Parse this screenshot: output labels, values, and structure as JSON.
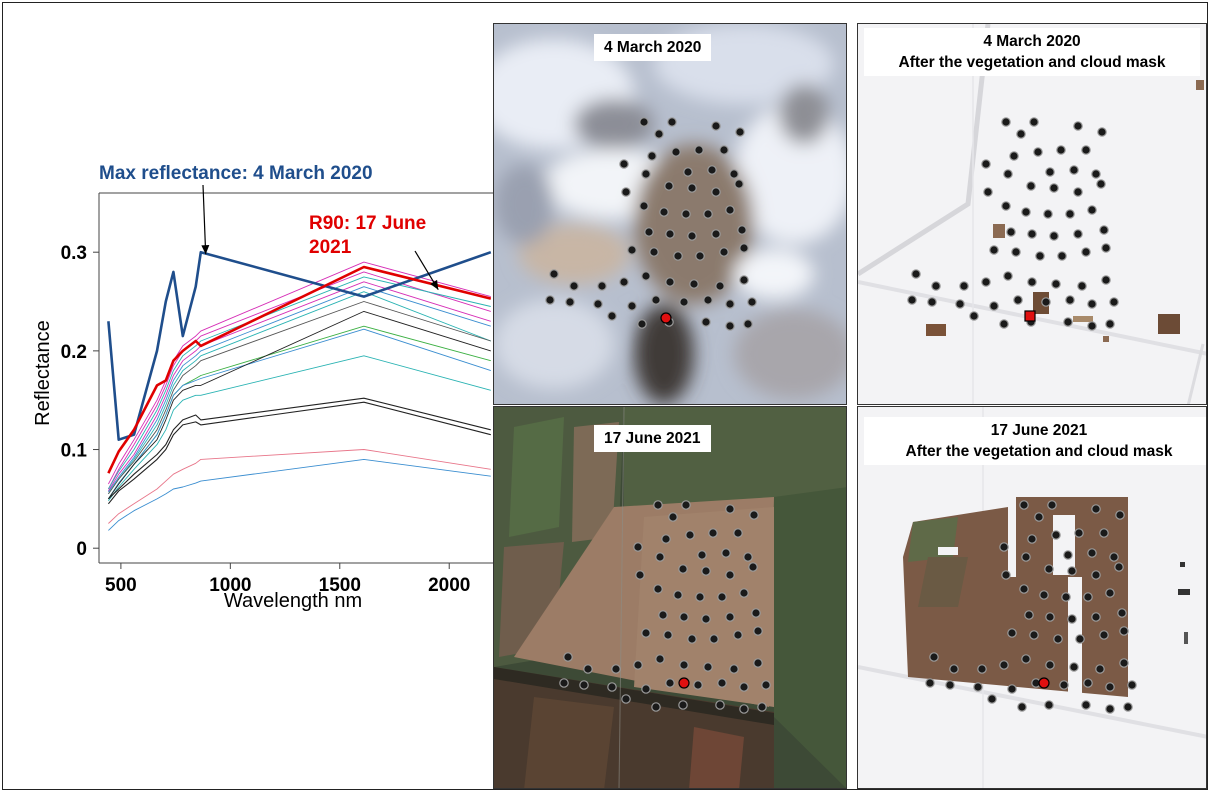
{
  "chart_data": {
    "type": "line",
    "xlabel": "Wavelength nm",
    "ylabel": "Reflectance",
    "xlim": [
      400,
      2200
    ],
    "ylim": [
      -0.015,
      0.36
    ],
    "x_ticks": [
      500,
      1000,
      1500,
      2000
    ],
    "y_ticks": [
      0,
      0.1,
      0.2,
      0.3
    ],
    "x_tick_labels": [
      "500",
      "1000",
      "1500",
      "2000"
    ],
    "y_tick_labels": [
      "0",
      "0.1",
      "0.2",
      "0.3"
    ],
    "grid": false,
    "annotations": [
      {
        "text": "Max reflectance: 4 March 2020",
        "color": "#1f4e8c",
        "target": [
          860,
          0.3
        ]
      },
      {
        "text": "R90: 17 June 2021",
        "color": "#e00000",
        "target": [
          1950,
          0.262
        ]
      }
    ],
    "series": [
      {
        "name": "Max reflectance: 4 March 2020",
        "color": "#1f4e8c",
        "width": 2.6,
        "x": [
          443,
          490,
          560,
          665,
          705,
          740,
          783,
          842,
          865,
          1610,
          2190
        ],
        "y": [
          0.23,
          0.11,
          0.115,
          0.2,
          0.25,
          0.28,
          0.215,
          0.265,
          0.3,
          0.255,
          0.3
        ]
      },
      {
        "name": "R90: 17 June 2021",
        "color": "#e00000",
        "width": 2.6,
        "x": [
          443,
          490,
          560,
          665,
          705,
          740,
          783,
          842,
          865,
          1610,
          2190
        ],
        "y": [
          0.076,
          0.098,
          0.12,
          0.165,
          0.17,
          0.19,
          0.2,
          0.21,
          0.205,
          0.285,
          0.253
        ]
      },
      {
        "color": "#d62fb7",
        "width": 0.9,
        "x": [
          443,
          490,
          560,
          665,
          705,
          740,
          783,
          842,
          865,
          1610,
          2190
        ],
        "y": [
          0.065,
          0.085,
          0.11,
          0.15,
          0.17,
          0.19,
          0.205,
          0.215,
          0.22,
          0.29,
          0.255
        ]
      },
      {
        "color": "#d62fb7",
        "width": 0.9,
        "x": [
          443,
          490,
          560,
          665,
          705,
          740,
          783,
          842,
          865,
          1610,
          2190
        ],
        "y": [
          0.06,
          0.08,
          0.105,
          0.145,
          0.165,
          0.185,
          0.2,
          0.21,
          0.215,
          0.28,
          0.24
        ]
      },
      {
        "color": "#2ab3b3",
        "width": 0.9,
        "x": [
          443,
          490,
          560,
          665,
          705,
          740,
          783,
          842,
          865,
          1610,
          2190
        ],
        "y": [
          0.06,
          0.078,
          0.1,
          0.14,
          0.16,
          0.18,
          0.195,
          0.205,
          0.21,
          0.275,
          0.245
        ]
      },
      {
        "color": "#d62fb7",
        "width": 0.9,
        "x": [
          443,
          490,
          560,
          665,
          705,
          740,
          783,
          842,
          865,
          1610,
          2190
        ],
        "y": [
          0.058,
          0.075,
          0.095,
          0.135,
          0.155,
          0.175,
          0.19,
          0.2,
          0.205,
          0.27,
          0.23
        ]
      },
      {
        "color": "#3b8ed0",
        "width": 0.9,
        "x": [
          443,
          490,
          560,
          665,
          705,
          740,
          783,
          842,
          865,
          1610,
          2190
        ],
        "y": [
          0.057,
          0.072,
          0.092,
          0.13,
          0.15,
          0.17,
          0.185,
          0.195,
          0.2,
          0.265,
          0.225
        ]
      },
      {
        "color": "#2ab3b3",
        "width": 0.9,
        "x": [
          443,
          490,
          560,
          665,
          705,
          740,
          783,
          842,
          865,
          1610,
          2190
        ],
        "y": [
          0.055,
          0.07,
          0.09,
          0.125,
          0.145,
          0.165,
          0.18,
          0.19,
          0.195,
          0.26,
          0.21
        ]
      },
      {
        "color": "#555555",
        "width": 0.9,
        "x": [
          443,
          490,
          560,
          665,
          705,
          740,
          783,
          842,
          865,
          1610,
          2190
        ],
        "y": [
          0.055,
          0.07,
          0.088,
          0.12,
          0.14,
          0.16,
          0.175,
          0.185,
          0.19,
          0.25,
          0.21
        ]
      },
      {
        "color": "#3cb043",
        "width": 0.9,
        "x": [
          443,
          490,
          560,
          665,
          705,
          740,
          783,
          842,
          865,
          1610,
          2190
        ],
        "y": [
          0.05,
          0.066,
          0.085,
          0.115,
          0.135,
          0.155,
          0.165,
          0.172,
          0.175,
          0.225,
          0.19
        ]
      },
      {
        "color": "#3b8ed0",
        "width": 0.9,
        "x": [
          443,
          490,
          560,
          665,
          705,
          740,
          783,
          842,
          865,
          1610,
          2190
        ],
        "y": [
          0.05,
          0.066,
          0.085,
          0.115,
          0.135,
          0.155,
          0.165,
          0.17,
          0.172,
          0.222,
          0.18
        ]
      },
      {
        "color": "#222222",
        "width": 0.9,
        "x": [
          443,
          490,
          560,
          665,
          705,
          740,
          783,
          842,
          865,
          1610,
          2190
        ],
        "y": [
          0.05,
          0.065,
          0.085,
          0.11,
          0.13,
          0.15,
          0.16,
          0.165,
          0.165,
          0.24,
          0.2
        ]
      },
      {
        "color": "#2ab3b3",
        "width": 0.9,
        "x": [
          443,
          490,
          560,
          665,
          705,
          740,
          783,
          842,
          865,
          1610,
          2190
        ],
        "y": [
          0.048,
          0.062,
          0.08,
          0.105,
          0.12,
          0.14,
          0.15,
          0.155,
          0.155,
          0.195,
          0.16
        ]
      },
      {
        "color": "#222222",
        "width": 1.1,
        "x": [
          443,
          490,
          560,
          665,
          705,
          740,
          783,
          842,
          865,
          1610,
          2190
        ],
        "y": [
          0.05,
          0.06,
          0.075,
          0.095,
          0.105,
          0.12,
          0.13,
          0.135,
          0.13,
          0.152,
          0.12
        ]
      },
      {
        "color": "#222222",
        "width": 1.1,
        "x": [
          443,
          490,
          560,
          665,
          705,
          740,
          783,
          842,
          865,
          1610,
          2190
        ],
        "y": [
          0.045,
          0.058,
          0.07,
          0.09,
          0.1,
          0.115,
          0.125,
          0.128,
          0.125,
          0.148,
          0.115
        ]
      },
      {
        "color": "#e8768a",
        "width": 0.9,
        "x": [
          443,
          490,
          560,
          665,
          705,
          740,
          783,
          842,
          865,
          1610,
          2190
        ],
        "y": [
          0.025,
          0.035,
          0.045,
          0.06,
          0.068,
          0.075,
          0.08,
          0.086,
          0.09,
          0.1,
          0.08
        ]
      },
      {
        "color": "#3b8ed0",
        "width": 0.9,
        "x": [
          443,
          490,
          560,
          665,
          705,
          740,
          783,
          842,
          865,
          1610,
          2190
        ],
        "y": [
          0.018,
          0.028,
          0.038,
          0.05,
          0.055,
          0.06,
          0.062,
          0.066,
          0.068,
          0.09,
          0.073
        ]
      }
    ]
  },
  "panels": [
    {
      "id": "a",
      "caption": [
        "4 March 2020"
      ]
    },
    {
      "id": "b",
      "caption": [
        "4 March 2020",
        "After the vegetation and cloud mask"
      ]
    },
    {
      "id": "c",
      "caption": [
        "17 June 2021"
      ]
    },
    {
      "id": "d",
      "caption": [
        "17 June 2021",
        "After the vegetation and cloud mask"
      ]
    }
  ]
}
